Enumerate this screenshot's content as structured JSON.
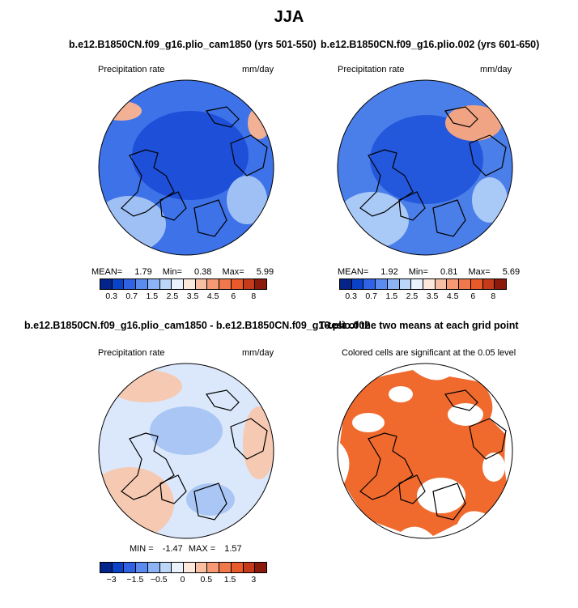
{
  "figure": {
    "title": "JJA"
  },
  "panels": {
    "p1": {
      "title": "b.e12.B1850CN.f09_g16.plio_cam1850 (yrs 501-550)",
      "variable": "Precipitation rate",
      "units": "mm/day",
      "stats": {
        "mean_label": "MEAN=",
        "mean": "1.79",
        "min_label": "Min=",
        "min": "0.38",
        "max_label": "Max=",
        "max": "5.99"
      }
    },
    "p2": {
      "title": "b.e12.B1850CN.f09_g16.plio.002 (yrs 601-650)",
      "variable": "Precipitation rate",
      "units": "mm/day",
      "stats": {
        "mean_label": "MEAN=",
        "mean": "1.92",
        "min_label": "Min=",
        "min": "0.81",
        "max_label": "Max=",
        "max": "5.69"
      }
    },
    "p3": {
      "title": "b.e12.B1850CN.f09_g16.plio_cam1850 - b.e12.B1850CN.f09_g16.plio.002",
      "variable": "Precipitation rate",
      "units": "mm/day",
      "min_label": "MIN =",
      "min": "-1.47",
      "max_label": "MAX =",
      "max": "1.57"
    },
    "p4": {
      "title": "T-test of the two means at each grid point",
      "subtitle": "Colored cells are significant at the 0.05 level"
    }
  },
  "colorbars": {
    "abs": {
      "colors": [
        "#04248a",
        "#0a43c8",
        "#2f63e4",
        "#5b8bee",
        "#8cb4f5",
        "#bcd6f9",
        "#e9f2fd",
        "#fde8dc",
        "#f8bfa2",
        "#f59a74",
        "#f1784c",
        "#e85a2a",
        "#c43a1a",
        "#8a1a0c"
      ],
      "labels": [
        "0.3",
        "0.7",
        "1.5",
        "2.5",
        "3.5",
        "4.5",
        "6",
        "8"
      ]
    },
    "diff": {
      "colors": [
        "#04248a",
        "#0a43c8",
        "#2f63e4",
        "#5b8bee",
        "#8cb4f5",
        "#bcd6f9",
        "#e9f2fd",
        "#fde8dc",
        "#f8bfa2",
        "#f59a74",
        "#f1784c",
        "#e85a2a",
        "#c43a1a",
        "#8a1a0c"
      ],
      "labels": [
        "−3",
        "−1.5",
        "−0.5",
        "0",
        "0.5",
        "1.5",
        "3"
      ]
    }
  },
  "map_colors": {
    "p1_base": "#3d72e8",
    "p1_dark": "#1e4fd8",
    "p1_light": "#9ec0f5",
    "p1_warm": "#f2b195",
    "p2_base": "#4a7ee9",
    "p2_dark": "#2358dc",
    "p2_light": "#a9c9f6",
    "p2_warm": "#f0a484",
    "p3_base": "#dbe8fb",
    "p3_blue": "#a9c6f5",
    "p3_warm": "#f6c9b2",
    "p4_sig": "#f06a2e"
  }
}
